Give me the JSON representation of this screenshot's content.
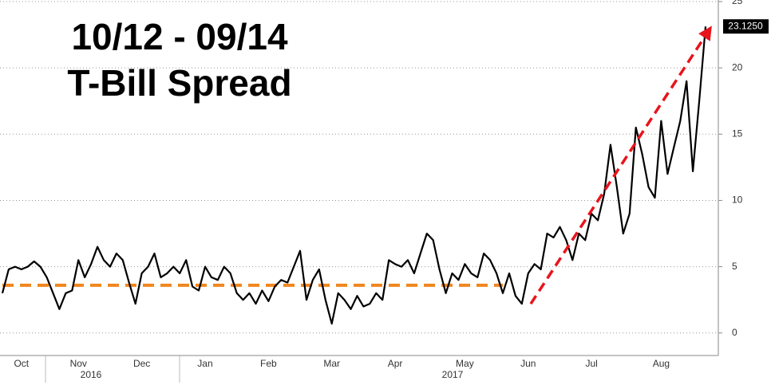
{
  "chart_data": {
    "type": "line",
    "title": "10/12 - 09/14",
    "subtitle": "T-Bill Spread",
    "categories": [
      null,
      null,
      null,
      "Oct",
      null,
      null,
      null,
      null,
      null,
      null,
      null,
      null,
      "Nov",
      null,
      null,
      null,
      null,
      null,
      null,
      null,
      null,
      null,
      "Dec",
      null,
      null,
      null,
      null,
      null,
      null,
      null,
      null,
      null,
      "Jan",
      null,
      null,
      null,
      null,
      null,
      null,
      null,
      null,
      null,
      "Feb",
      null,
      null,
      null,
      null,
      null,
      null,
      null,
      null,
      null,
      "Mar",
      null,
      null,
      null,
      null,
      null,
      null,
      null,
      null,
      null,
      "Apr",
      null,
      null,
      null,
      null,
      null,
      null,
      null,
      null,
      null,
      null,
      "May",
      null,
      null,
      null,
      null,
      null,
      null,
      null,
      null,
      null,
      "Jun",
      null,
      null,
      null,
      null,
      null,
      null,
      null,
      null,
      null,
      "Jul",
      null,
      null,
      null,
      null,
      null,
      null,
      null,
      null,
      null,
      null,
      "Aug",
      null,
      null,
      null,
      null,
      null,
      null,
      null
    ],
    "years": [
      "2016",
      "2017"
    ],
    "series": [
      {
        "name": "T-Bill Spread",
        "color": "#000000",
        "values": [
          3,
          4.8,
          5,
          4.8,
          5,
          5.4,
          5,
          4.2,
          3,
          1.8,
          3,
          3.2,
          5.5,
          4.2,
          5.2,
          6.5,
          5.5,
          5,
          6,
          5.5,
          3.8,
          2.2,
          4.5,
          5,
          6,
          4.2,
          4.5,
          5,
          4.5,
          5.5,
          3.5,
          3.2,
          5,
          4.2,
          4,
          5,
          4.5,
          3,
          2.5,
          3,
          2.2,
          3.2,
          2.4,
          3.5,
          4,
          3.8,
          5,
          6.2,
          2.5,
          4,
          4.8,
          2.5,
          0.7,
          3,
          2.5,
          1.8,
          2.8,
          2,
          2.2,
          3,
          2.5,
          5.5,
          5.2,
          5,
          5.5,
          4.5,
          6,
          7.5,
          7,
          4.8,
          3,
          4.5,
          4,
          5.2,
          4.5,
          4.2,
          6,
          5.5,
          4.5,
          3,
          4.5,
          2.8,
          2.2,
          4.5,
          5.2,
          4.8,
          7.5,
          7.2,
          8,
          7,
          5.5,
          7.5,
          7,
          9,
          8.5,
          10.5,
          14.2,
          11,
          7.5,
          9,
          15.5,
          13.5,
          11,
          10.2,
          16,
          12,
          14,
          16,
          19,
          12.2,
          17.5,
          23.125
        ]
      }
    ],
    "last_value_label": "23.1250",
    "reference_line": {
      "value": 3.6,
      "color": "#f0861e"
    },
    "trend_arrow": {
      "start": 2.2,
      "end": 23,
      "color": "#e8141c"
    },
    "ylim": [
      -1.7,
      25
    ],
    "yticks": [
      0,
      5,
      10,
      15,
      20,
      25
    ],
    "grid": true
  }
}
